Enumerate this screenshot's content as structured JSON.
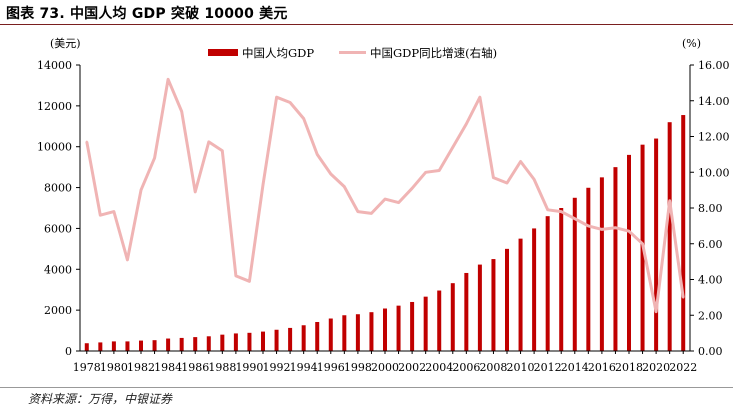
{
  "figure": {
    "title": "图表 73.  中国人均 GDP 突破 10000 美元",
    "source": "资料来源：万得，中银证券"
  },
  "chart_data": {
    "type": "bar",
    "left_unit": "(美元)",
    "right_unit": "(%)",
    "ylim_left": [
      0,
      14000
    ],
    "ylim_right": [
      0,
      16
    ],
    "yticks_left": [
      "0",
      "2000",
      "4000",
      "6000",
      "8000",
      "10000",
      "12000",
      "14000"
    ],
    "yticks_right": [
      "0.00",
      "2.00",
      "4.00",
      "6.00",
      "8.00",
      "10.00",
      "12.00",
      "14.00",
      "16.00"
    ],
    "x": [
      1978,
      1979,
      1980,
      1981,
      1982,
      1983,
      1984,
      1985,
      1986,
      1987,
      1988,
      1989,
      1990,
      1991,
      1992,
      1993,
      1994,
      1995,
      1996,
      1997,
      1998,
      1999,
      2000,
      2001,
      2002,
      2003,
      2004,
      2005,
      2006,
      2007,
      2008,
      2009,
      2010,
      2011,
      2012,
      2013,
      2014,
      2015,
      2016,
      2017,
      2018,
      2019,
      2020,
      2021,
      2022
    ],
    "x_tick_labels": [
      "1978",
      "1980",
      "1982",
      "1984",
      "1986",
      "1988",
      "1990",
      "1992",
      "1994",
      "1996",
      "1998",
      "2000",
      "2002",
      "2004",
      "2006",
      "2008",
      "2010",
      "2012",
      "2014",
      "2016",
      "2018",
      "2020",
      "2022"
    ],
    "series": [
      {
        "name": "中国人均GDP",
        "type": "bar",
        "axis": "left",
        "color": "#c00000",
        "values": [
          380,
          420,
          470,
          470,
          510,
          530,
          610,
          640,
          680,
          720,
          800,
          860,
          890,
          950,
          1040,
          1130,
          1260,
          1420,
          1590,
          1750,
          1800,
          1900,
          2080,
          2220,
          2400,
          2660,
          2960,
          3320,
          3820,
          4230,
          4500,
          5000,
          5500,
          6000,
          6600,
          7000,
          7500,
          7990,
          8500,
          9000,
          9600,
          10100,
          10400,
          11200,
          11550
        ]
      },
      {
        "name": "中国GDP同比增速(右轴)",
        "type": "line",
        "axis": "right",
        "color": "#f0b4b4",
        "values": [
          11.7,
          7.6,
          7.8,
          5.1,
          9.0,
          10.8,
          15.2,
          13.4,
          8.9,
          11.7,
          11.2,
          4.2,
          3.9,
          9.3,
          14.2,
          13.9,
          13.0,
          11.0,
          9.9,
          9.2,
          7.8,
          7.7,
          8.5,
          8.3,
          9.1,
          10.0,
          10.1,
          11.4,
          12.7,
          14.2,
          9.7,
          9.4,
          10.6,
          9.6,
          7.9,
          7.8,
          7.4,
          7.0,
          6.8,
          6.9,
          6.7,
          6.0,
          2.2,
          8.4,
          3.0
        ]
      }
    ]
  }
}
